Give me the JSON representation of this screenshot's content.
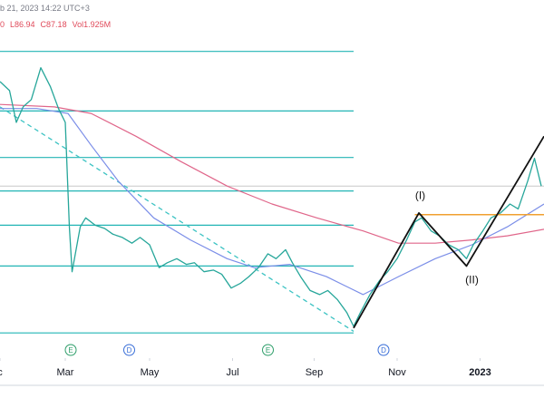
{
  "chart_data": {
    "type": "line",
    "header": {
      "date": "b 21, 2023 14:22 UTC+3",
      "values": [
        "0",
        "L86.94",
        "C87.18",
        "Vol1.925M"
      ]
    },
    "xlim": [
      0,
      400
    ],
    "ylim": [
      60,
      110
    ],
    "xticks": [
      {
        "value": 0,
        "label": "c"
      },
      {
        "value": 48,
        "label": "Mar"
      },
      {
        "value": 110,
        "label": "May"
      },
      {
        "value": 171,
        "label": "Jul"
      },
      {
        "value": 231,
        "label": "Sep"
      },
      {
        "value": 292,
        "label": "Nov"
      },
      {
        "value": 353,
        "label": "2023"
      }
    ],
    "series": [
      {
        "color": "#26a69a",
        "x": [
          0,
          7,
          12,
          17,
          23,
          30,
          37,
          43,
          48,
          51,
          53,
          59,
          63,
          70,
          77,
          83,
          90,
          97,
          103,
          110,
          117,
          123,
          130,
          137,
          143,
          150,
          157,
          163,
          170,
          177,
          183,
          190,
          197,
          203,
          210,
          215,
          221,
          228,
          235,
          241,
          248,
          255,
          260,
          265,
          272,
          279,
          285,
          292,
          299,
          305,
          310,
          317,
          323,
          330,
          337,
          343,
          348,
          355,
          361,
          368,
          375,
          381,
          388,
          393,
          398
        ],
        "values": [
          100,
          98.9,
          95,
          96.9,
          97.8,
          101.7,
          99.4,
          96.7,
          95,
          82.2,
          76.7,
          82.2,
          83.3,
          82.4,
          82,
          81.3,
          80.9,
          80.2,
          80.9,
          80,
          77.2,
          77.8,
          78.3,
          77.6,
          77.8,
          76.7,
          76.9,
          76.4,
          74.7,
          75.3,
          76.1,
          77.2,
          78.9,
          78.3,
          79.4,
          77.8,
          76.1,
          74.4,
          73.9,
          74.4,
          73.3,
          71.7,
          70,
          71.7,
          73.9,
          75.6,
          76.7,
          78.3,
          80.6,
          82.8,
          83.3,
          81.7,
          81.1,
          80,
          79.4,
          78.3,
          80,
          81.7,
          83.3,
          83.9,
          85,
          84.4,
          87.8,
          90.6,
          87.2
        ]
      },
      {
        "color": "#7b8ee8",
        "x": [
          0,
          27,
          50,
          67,
          87,
          113,
          140,
          167,
          187,
          213,
          240,
          267,
          293,
          320,
          347,
          373,
          400
        ],
        "values": [
          96.7,
          96.7,
          96.1,
          92.2,
          87.8,
          83.3,
          80.6,
          78.3,
          77.2,
          77.6,
          76.1,
          73.9,
          76.1,
          78.3,
          80,
          82.2,
          85
        ]
      },
      {
        "color": "#e0668a",
        "x": [
          0,
          40,
          67,
          100,
          133,
          167,
          200,
          233,
          267,
          293,
          320,
          347,
          373,
          400
        ],
        "values": [
          97.2,
          96.9,
          96.1,
          93.3,
          90.2,
          87.2,
          85,
          83.3,
          81.7,
          80.2,
          80.2,
          80.6,
          81.1,
          81.9
        ]
      }
    ],
    "levels": {
      "color": "#22b5b5",
      "x_end": 260,
      "values": [
        103.7,
        96.4,
        90.7,
        86.6,
        82.4,
        77.4,
        69.2
      ]
    },
    "trend": {
      "color": "#3cc3c3",
      "x": [
        0,
        260
      ],
      "values": [
        96.9,
        69.4
      ]
    },
    "price_line": {
      "color": "#c8c8c8",
      "value": 87.2
    },
    "resistance": {
      "color": "#f0a030",
      "x": [
        305,
        400
      ],
      "value": 83.7
    },
    "wave": {
      "color": "#111111",
      "x": [
        260,
        308,
        343,
        400
      ],
      "values": [
        69.8,
        83.9,
        77.4,
        93.3
      ]
    },
    "annotations": [
      {
        "text": "(I)",
        "x": 309,
        "y": 85.6
      },
      {
        "text": "(II)",
        "x": 347,
        "y": 75.3
      }
    ],
    "events": [
      {
        "label": "E",
        "x": 52
      },
      {
        "label": "D",
        "x": 95
      },
      {
        "label": "E",
        "x": 197
      },
      {
        "label": "D",
        "x": 282
      }
    ]
  }
}
